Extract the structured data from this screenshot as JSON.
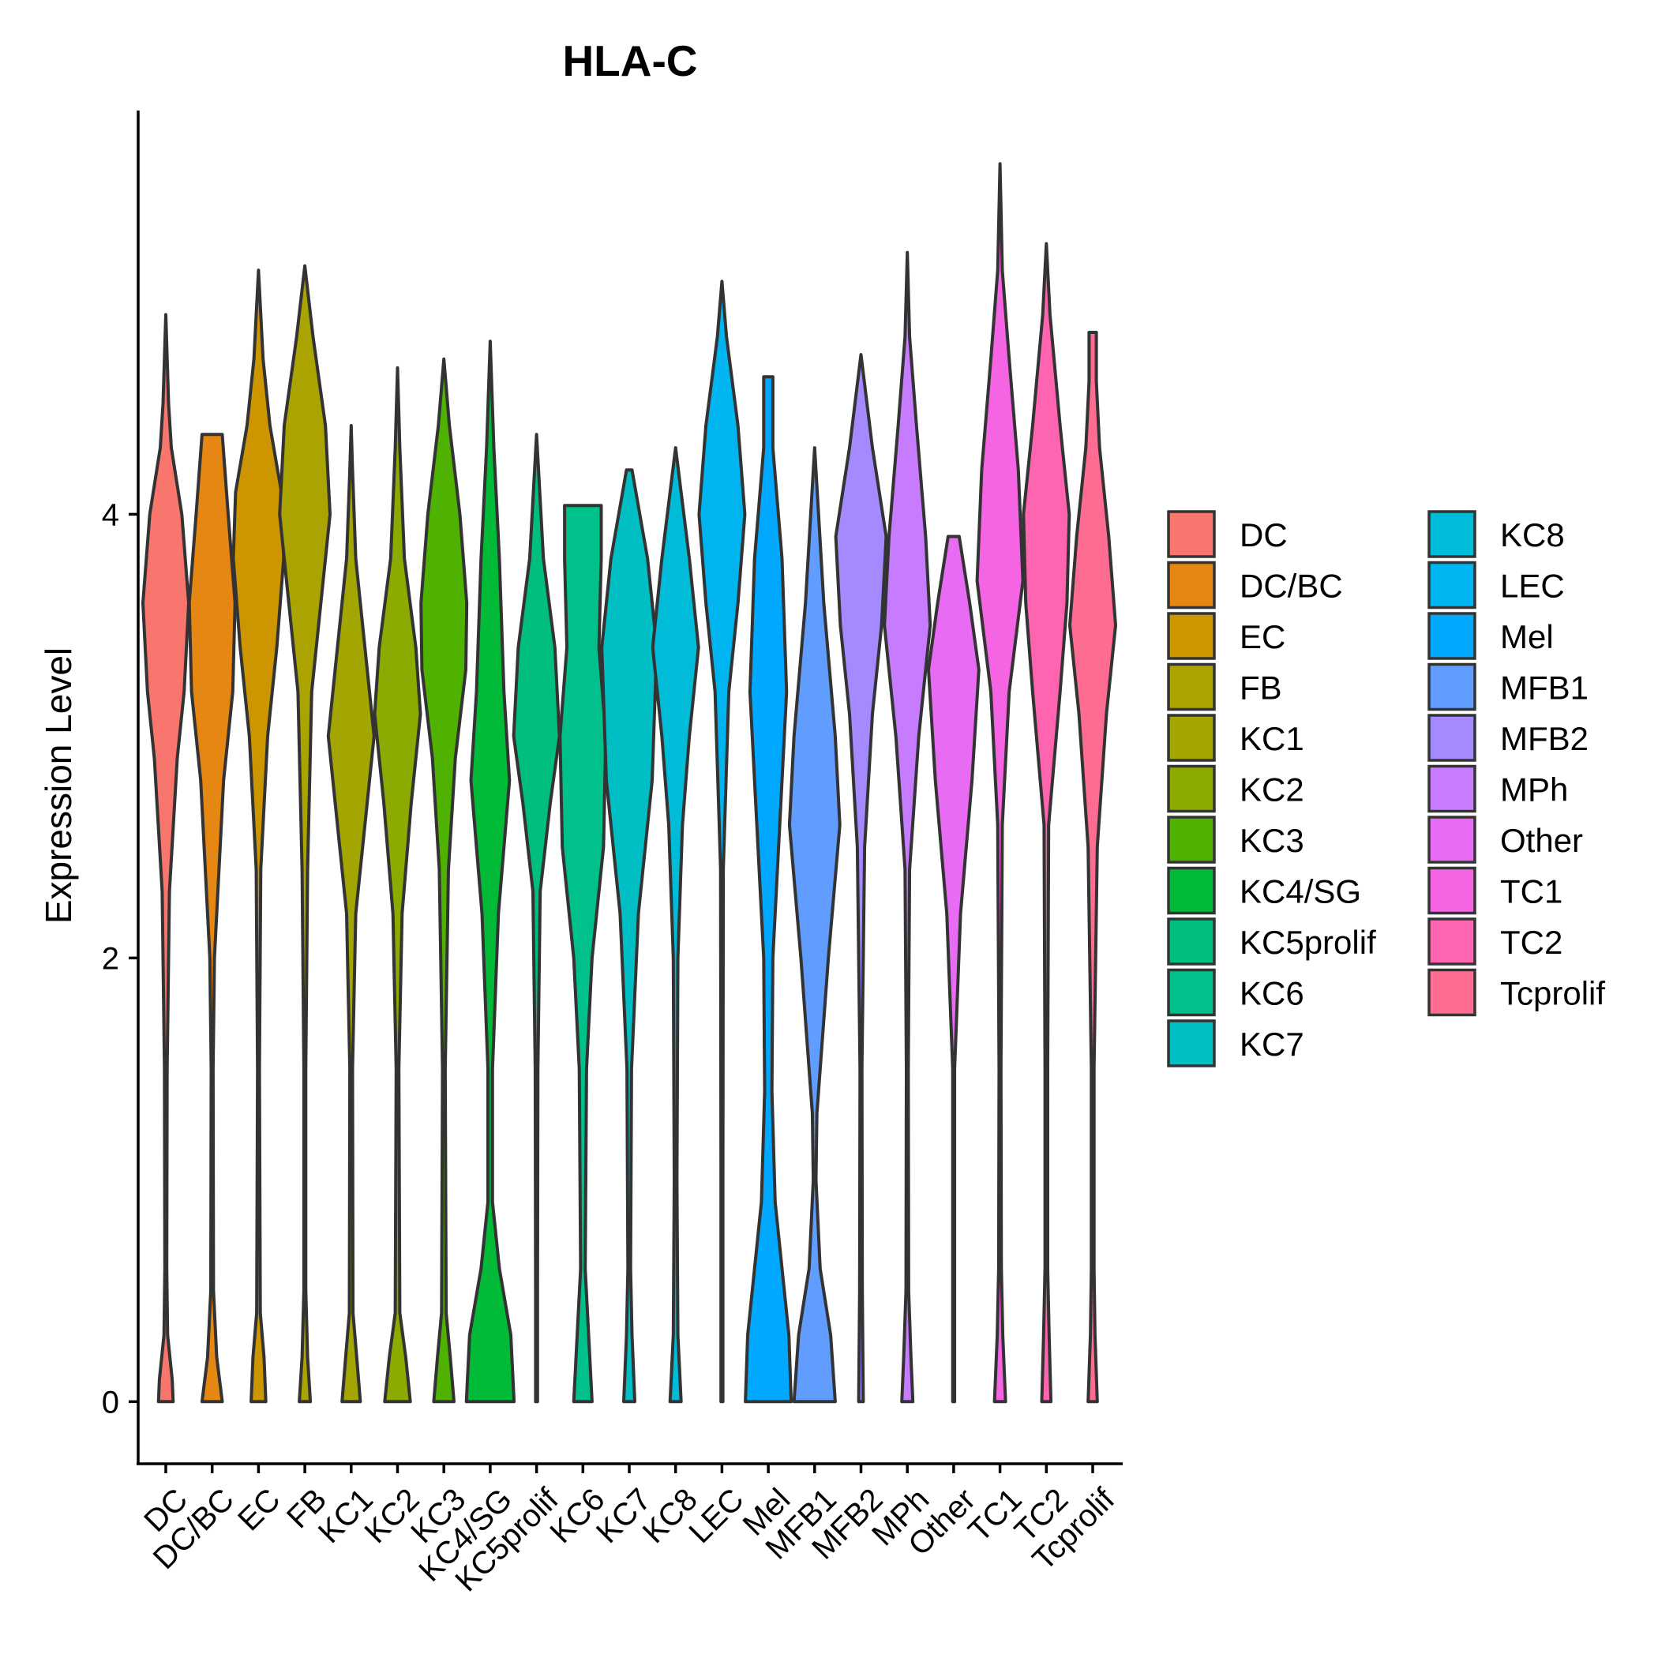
{
  "chart_data": {
    "type": "violin",
    "title": "HLA-C",
    "xlabel": "",
    "ylabel": "Expression Level",
    "ylim": [
      -0.28,
      5.82
    ],
    "yticks": [
      "0",
      "2",
      "4"
    ],
    "grid": false,
    "legend": "right",
    "series": [
      {
        "name": "DC",
        "color": "#F8766D",
        "max": 4.9,
        "profile": [
          [
            0,
            0.16
          ],
          [
            0.1,
            0.14
          ],
          [
            0.3,
            0.04
          ],
          [
            0.6,
            0.02
          ],
          [
            1.5,
            0.03
          ],
          [
            2.3,
            0.08
          ],
          [
            2.9,
            0.25
          ],
          [
            3.2,
            0.4
          ],
          [
            3.6,
            0.5
          ],
          [
            4.0,
            0.35
          ],
          [
            4.3,
            0.12
          ],
          [
            4.5,
            0.06
          ],
          [
            4.9,
            0
          ]
        ]
      },
      {
        "name": "DC/BC",
        "color": "#E68613",
        "max": 4.36,
        "profile": [
          [
            0,
            0.22
          ],
          [
            0.2,
            0.1
          ],
          [
            0.5,
            0.03
          ],
          [
            1.5,
            0.02
          ],
          [
            2.0,
            0.05
          ],
          [
            2.8,
            0.25
          ],
          [
            3.2,
            0.45
          ],
          [
            3.6,
            0.5
          ],
          [
            4.0,
            0.35
          ],
          [
            4.36,
            0.22
          ]
        ]
      },
      {
        "name": "EC",
        "color": "#CD9600",
        "max": 5.1,
        "profile": [
          [
            0,
            0.16
          ],
          [
            0.2,
            0.12
          ],
          [
            0.4,
            0.04
          ],
          [
            1.5,
            0.02
          ],
          [
            2.4,
            0.05
          ],
          [
            3.0,
            0.2
          ],
          [
            3.4,
            0.4
          ],
          [
            3.8,
            0.55
          ],
          [
            4.1,
            0.5
          ],
          [
            4.4,
            0.25
          ],
          [
            4.7,
            0.1
          ],
          [
            5.1,
            0
          ]
        ]
      },
      {
        "name": "FB",
        "color": "#ABA300",
        "max": 5.12,
        "profile": [
          [
            0,
            0.12
          ],
          [
            0.2,
            0.06
          ],
          [
            0.5,
            0.02
          ],
          [
            1.5,
            0.02
          ],
          [
            2.4,
            0.06
          ],
          [
            3.2,
            0.15
          ],
          [
            3.6,
            0.35
          ],
          [
            4.0,
            0.55
          ],
          [
            4.4,
            0.45
          ],
          [
            4.8,
            0.18
          ],
          [
            5.12,
            0
          ]
        ]
      },
      {
        "name": "KC1",
        "color": "#A3A500",
        "max": 4.4,
        "profile": [
          [
            0,
            0.2
          ],
          [
            0.2,
            0.12
          ],
          [
            0.4,
            0.04
          ],
          [
            1.5,
            0.03
          ],
          [
            2.2,
            0.1
          ],
          [
            2.6,
            0.3
          ],
          [
            3.0,
            0.5
          ],
          [
            3.4,
            0.3
          ],
          [
            3.8,
            0.1
          ],
          [
            4.2,
            0.03
          ],
          [
            4.4,
            0
          ]
        ]
      },
      {
        "name": "KC2",
        "color": "#8CAB00",
        "max": 4.66,
        "profile": [
          [
            0,
            0.28
          ],
          [
            0.2,
            0.18
          ],
          [
            0.4,
            0.05
          ],
          [
            1.5,
            0.03
          ],
          [
            2.2,
            0.1
          ],
          [
            2.7,
            0.3
          ],
          [
            3.1,
            0.5
          ],
          [
            3.4,
            0.4
          ],
          [
            3.8,
            0.15
          ],
          [
            4.3,
            0.05
          ],
          [
            4.66,
            0
          ]
        ]
      },
      {
        "name": "KC3",
        "color": "#4FB200",
        "max": 4.7,
        "profile": [
          [
            0,
            0.22
          ],
          [
            0.2,
            0.14
          ],
          [
            0.4,
            0.05
          ],
          [
            1.5,
            0.03
          ],
          [
            2.4,
            0.1
          ],
          [
            2.9,
            0.25
          ],
          [
            3.3,
            0.48
          ],
          [
            3.6,
            0.5
          ],
          [
            4.0,
            0.35
          ],
          [
            4.4,
            0.12
          ],
          [
            4.7,
            0
          ]
        ]
      },
      {
        "name": "KC4/SG",
        "color": "#00BA38",
        "max": 4.78,
        "profile": [
          [
            0,
            0.52
          ],
          [
            0.3,
            0.45
          ],
          [
            0.6,
            0.2
          ],
          [
            0.9,
            0.05
          ],
          [
            1.5,
            0.05
          ],
          [
            2.2,
            0.18
          ],
          [
            2.8,
            0.42
          ],
          [
            3.2,
            0.3
          ],
          [
            3.8,
            0.2
          ],
          [
            4.3,
            0.08
          ],
          [
            4.78,
            0
          ]
        ]
      },
      {
        "name": "KC5prolif",
        "color": "#00BF7D",
        "max": 4.36,
        "profile": [
          [
            0,
            0.02
          ],
          [
            0.5,
            0.02
          ],
          [
            1.5,
            0.03
          ],
          [
            2.3,
            0.08
          ],
          [
            2.7,
            0.3
          ],
          [
            3.0,
            0.5
          ],
          [
            3.4,
            0.4
          ],
          [
            3.8,
            0.15
          ],
          [
            4.36,
            0
          ]
        ]
      },
      {
        "name": "KC6",
        "color": "#00C08B",
        "max": 4.04,
        "profile": [
          [
            0,
            0.2
          ],
          [
            0.2,
            0.15
          ],
          [
            0.6,
            0.05
          ],
          [
            1.5,
            0.08
          ],
          [
            2.0,
            0.2
          ],
          [
            2.5,
            0.45
          ],
          [
            3.0,
            0.5
          ],
          [
            3.4,
            0.35
          ],
          [
            3.8,
            0.4
          ],
          [
            4.04,
            0.4
          ]
        ]
      },
      {
        "name": "KC7",
        "color": "#00BFC4",
        "max": 4.2,
        "profile": [
          [
            0,
            0.12
          ],
          [
            0.3,
            0.06
          ],
          [
            0.6,
            0.03
          ],
          [
            1.5,
            0.05
          ],
          [
            2.2,
            0.2
          ],
          [
            2.8,
            0.5
          ],
          [
            3.4,
            0.6
          ],
          [
            3.8,
            0.4
          ],
          [
            4.2,
            0.06
          ]
        ]
      },
      {
        "name": "KC8",
        "color": "#00BCD8",
        "max": 4.3,
        "profile": [
          [
            0,
            0.12
          ],
          [
            0.3,
            0.05
          ],
          [
            1.0,
            0.03
          ],
          [
            2.0,
            0.05
          ],
          [
            2.6,
            0.15
          ],
          [
            3.0,
            0.3
          ],
          [
            3.4,
            0.5
          ],
          [
            3.8,
            0.3
          ],
          [
            4.3,
            0
          ]
        ]
      },
      {
        "name": "LEC",
        "color": "#00B4EF",
        "max": 5.05,
        "profile": [
          [
            0,
            0.02
          ],
          [
            1.0,
            0.02
          ],
          [
            2.4,
            0.03
          ],
          [
            3.2,
            0.15
          ],
          [
            3.6,
            0.35
          ],
          [
            4.0,
            0.5
          ],
          [
            4.4,
            0.35
          ],
          [
            4.8,
            0.1
          ],
          [
            5.05,
            0
          ]
        ]
      },
      {
        "name": "Mel",
        "color": "#00A9FF",
        "max": 4.62,
        "profile": [
          [
            0,
            0.5
          ],
          [
            0.3,
            0.45
          ],
          [
            0.6,
            0.3
          ],
          [
            0.9,
            0.15
          ],
          [
            1.4,
            0.08
          ],
          [
            2.0,
            0.1
          ],
          [
            2.6,
            0.25
          ],
          [
            3.2,
            0.4
          ],
          [
            3.8,
            0.3
          ],
          [
            4.3,
            0.1
          ],
          [
            4.62,
            0.1
          ]
        ]
      },
      {
        "name": "MFB1",
        "color": "#619CFF",
        "max": 4.3,
        "profile": [
          [
            0,
            0.45
          ],
          [
            0.3,
            0.35
          ],
          [
            0.6,
            0.12
          ],
          [
            1.0,
            0.03
          ],
          [
            1.3,
            0.05
          ],
          [
            2.0,
            0.3
          ],
          [
            2.6,
            0.55
          ],
          [
            3.0,
            0.45
          ],
          [
            3.6,
            0.2
          ],
          [
            4.3,
            0
          ]
        ]
      },
      {
        "name": "MFB2",
        "color": "#A58AFF",
        "max": 4.72,
        "profile": [
          [
            0,
            0.05
          ],
          [
            0.5,
            0.03
          ],
          [
            1.5,
            0.02
          ],
          [
            2.5,
            0.08
          ],
          [
            3.1,
            0.25
          ],
          [
            3.5,
            0.45
          ],
          [
            3.9,
            0.55
          ],
          [
            4.3,
            0.25
          ],
          [
            4.72,
            0
          ]
        ]
      },
      {
        "name": "MPh",
        "color": "#C77CFF",
        "max": 5.18,
        "profile": [
          [
            0,
            0.12
          ],
          [
            0.2,
            0.08
          ],
          [
            0.5,
            0.03
          ],
          [
            1.5,
            0.02
          ],
          [
            2.4,
            0.05
          ],
          [
            3.0,
            0.25
          ],
          [
            3.5,
            0.5
          ],
          [
            3.9,
            0.4
          ],
          [
            4.4,
            0.2
          ],
          [
            4.8,
            0.05
          ],
          [
            5.18,
            0
          ]
        ]
      },
      {
        "name": "Other",
        "color": "#E76BF3",
        "max": 3.9,
        "profile": [
          [
            0,
            0.02
          ],
          [
            0.5,
            0.02
          ],
          [
            1.5,
            0.02
          ],
          [
            2.2,
            0.15
          ],
          [
            2.8,
            0.4
          ],
          [
            3.3,
            0.55
          ],
          [
            3.6,
            0.35
          ],
          [
            3.9,
            0.12
          ]
        ]
      },
      {
        "name": "TC1",
        "color": "#F564E3",
        "max": 5.58,
        "profile": [
          [
            0,
            0.12
          ],
          [
            0.3,
            0.06
          ],
          [
            0.6,
            0.03
          ],
          [
            1.5,
            0.02
          ],
          [
            2.6,
            0.05
          ],
          [
            3.2,
            0.2
          ],
          [
            3.7,
            0.5
          ],
          [
            4.2,
            0.4
          ],
          [
            4.7,
            0.2
          ],
          [
            5.1,
            0.05
          ],
          [
            5.58,
            0
          ]
        ]
      },
      {
        "name": "TC2",
        "color": "#FF64B0",
        "max": 5.22,
        "profile": [
          [
            0,
            0.1
          ],
          [
            0.3,
            0.06
          ],
          [
            0.6,
            0.03
          ],
          [
            1.5,
            0.03
          ],
          [
            2.6,
            0.05
          ],
          [
            3.2,
            0.3
          ],
          [
            3.6,
            0.45
          ],
          [
            4.0,
            0.5
          ],
          [
            4.4,
            0.3
          ],
          [
            4.9,
            0.08
          ],
          [
            5.22,
            0
          ]
        ]
      },
      {
        "name": "Tcprolif",
        "color": "#FF6C91",
        "max": 4.82,
        "profile": [
          [
            0,
            0.1
          ],
          [
            0.3,
            0.05
          ],
          [
            0.6,
            0.03
          ],
          [
            1.5,
            0.03
          ],
          [
            2.5,
            0.1
          ],
          [
            3.1,
            0.3
          ],
          [
            3.5,
            0.5
          ],
          [
            3.9,
            0.35
          ],
          [
            4.3,
            0.15
          ],
          [
            4.6,
            0.08
          ],
          [
            4.82,
            0.08
          ]
        ]
      }
    ]
  }
}
